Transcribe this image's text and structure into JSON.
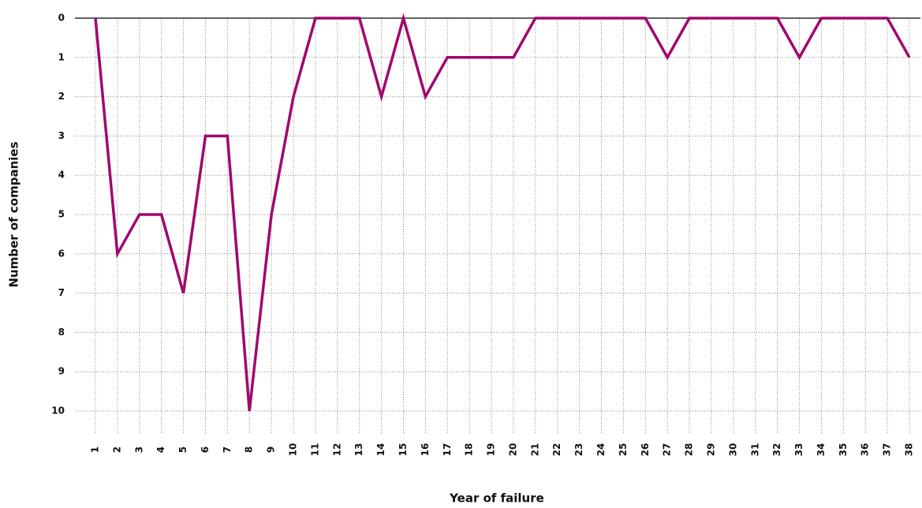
{
  "chart_data": {
    "type": "line",
    "x_label": "Year of failure",
    "y_label": "Number of companies",
    "categories": [
      "1",
      "2",
      "3",
      "4",
      "5",
      "6",
      "7",
      "8",
      "9",
      "10",
      "11",
      "12",
      "13",
      "14",
      "15",
      "16",
      "17",
      "18",
      "19",
      "20",
      "21",
      "22",
      "23",
      "24",
      "25",
      "26",
      "27",
      "28",
      "29",
      "30",
      "31",
      "32",
      "33",
      "34",
      "35",
      "36",
      "37",
      "38"
    ],
    "values": [
      0,
      6,
      5,
      5,
      7,
      3,
      3,
      10,
      5,
      2,
      0,
      0,
      0,
      2,
      0,
      2,
      1,
      1,
      1,
      1,
      0,
      0,
      0,
      0,
      0,
      0,
      1,
      0,
      0,
      0,
      0,
      0,
      1,
      0,
      0,
      0,
      0,
      1
    ],
    "color": "#a0086e",
    "ylim": [
      10,
      0
    ],
    "yticks": [
      0,
      1,
      2,
      3,
      4,
      5,
      6,
      7,
      8,
      9,
      10
    ],
    "grid": true
  }
}
